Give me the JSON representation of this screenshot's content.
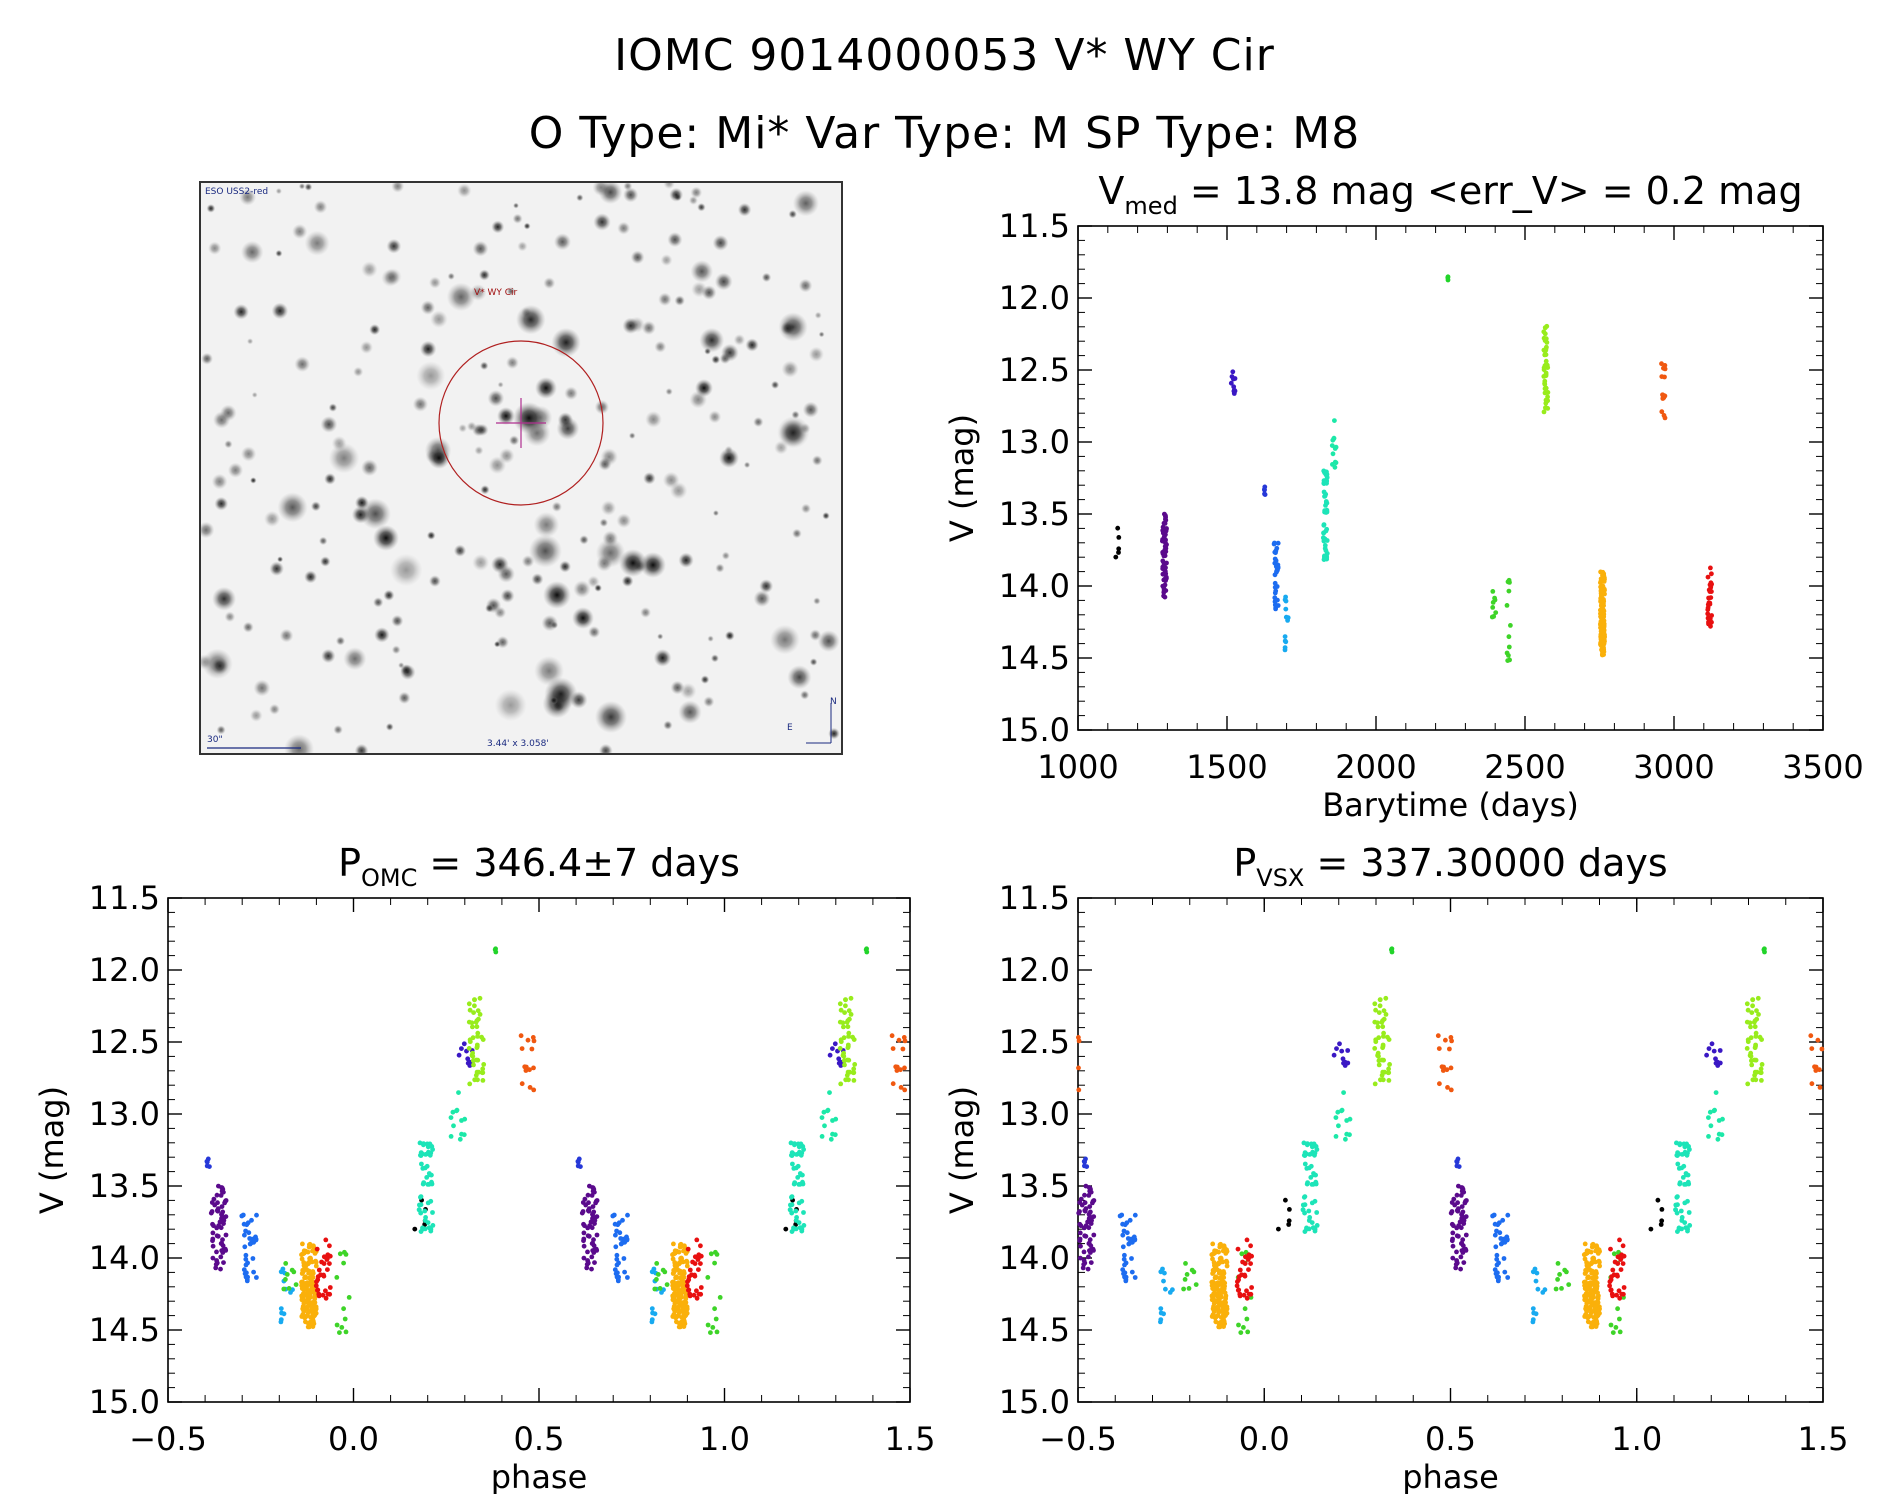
{
  "header": {
    "title": "IOMC 9014000053   V* WY Cir",
    "subtitle": "O Type: Mi*  Var Type: M  SP Type: M8"
  },
  "finder_image": {
    "survey_label": "ESO USS2-red",
    "target_label": "V* WY Cir",
    "scale_label": "30\"",
    "size_label": "3.44' x 3.058'",
    "east_label": "E",
    "north_label": "N"
  },
  "chart_data": [
    {
      "id": "lightcurve",
      "type": "scatter",
      "title_main": "V",
      "title_sub": "med",
      "title_rest": " = 13.8 mag <err_V> = 0.2 mag",
      "xlabel": "Barytime (days)",
      "ylabel": "V (mag)",
      "xlim": [
        1000,
        3500
      ],
      "ylim": [
        15.0,
        11.5
      ],
      "y_inverted": true,
      "xticks": [
        1000,
        1500,
        2000,
        2500,
        3000,
        3500
      ],
      "yticks": [
        11.5,
        12.0,
        12.5,
        13.0,
        13.5,
        14.0,
        14.5,
        15.0
      ],
      "groups": [
        {
          "color": "#000000",
          "x": 1130,
          "ymin": 13.58,
          "ymax": 13.8,
          "n": 5
        },
        {
          "color": "#5a0a8c",
          "x": 1290,
          "ymin": 13.5,
          "ymax": 14.1,
          "n": 60
        },
        {
          "color": "#3a18c4",
          "x": 1520,
          "ymin": 12.5,
          "ymax": 12.68,
          "n": 10
        },
        {
          "color": "#2638d8",
          "x": 1625,
          "ymin": 13.28,
          "ymax": 13.4,
          "n": 5
        },
        {
          "color": "#1d6cf0",
          "x": 1665,
          "ymin": 13.7,
          "ymax": 14.2,
          "n": 35
        },
        {
          "color": "#18aaf0",
          "x": 1700,
          "ymin": 14.05,
          "ymax": 14.5,
          "n": 12
        },
        {
          "color": "#1de4b8",
          "x": 1830,
          "ymin": 13.2,
          "ymax": 13.82,
          "n": 55
        },
        {
          "color": "#1ce8a8",
          "x": 1860,
          "ymin": 12.85,
          "ymax": 13.2,
          "n": 12
        },
        {
          "color": "#22d42a",
          "x": 2235,
          "ymin": 11.85,
          "ymax": 11.88,
          "n": 3
        },
        {
          "color": "#3ed428",
          "x": 2395,
          "ymin": 14.0,
          "ymax": 14.3,
          "n": 8
        },
        {
          "color": "#3ed428",
          "x": 2445,
          "ymin": 13.95,
          "ymax": 14.55,
          "n": 12
        },
        {
          "color": "#98ec1c",
          "x": 2570,
          "ymin": 12.18,
          "ymax": 12.8,
          "n": 45
        },
        {
          "color": "#fab00a",
          "x": 2760,
          "ymin": 13.9,
          "ymax": 14.48,
          "n": 160
        },
        {
          "color": "#f05810",
          "x": 2965,
          "ymin": 12.45,
          "ymax": 12.55,
          "n": 6
        },
        {
          "color": "#f05810",
          "x": 2965,
          "ymin": 12.65,
          "ymax": 12.85,
          "n": 8
        },
        {
          "color": "#e81010",
          "x": 3120,
          "ymin": 13.85,
          "ymax": 14.28,
          "n": 30
        }
      ]
    },
    {
      "id": "phase_omc",
      "type": "scatter",
      "title_main": "P",
      "title_sub": "OMC",
      "title_rest": " = 346.4±7 days",
      "xlabel": "phase",
      "ylabel": "V (mag)",
      "xlim": [
        -0.5,
        1.5
      ],
      "ylim": [
        15.0,
        11.5
      ],
      "y_inverted": true,
      "xticks": [
        -0.5,
        0.0,
        0.5,
        1.0,
        1.5
      ],
      "xtick_labels": [
        "−0.5",
        "0.0",
        "0.5",
        "1.0",
        "1.5"
      ],
      "yticks": [
        11.5,
        12.0,
        12.5,
        13.0,
        13.5,
        14.0,
        14.5,
        15.0
      ],
      "period": 346.4
    },
    {
      "id": "phase_vsx",
      "type": "scatter",
      "title_main": "P",
      "title_sub": "VSX",
      "title_rest": " = 337.30000 days",
      "xlabel": "phase",
      "ylabel": "V (mag)",
      "xlim": [
        -0.5,
        1.5
      ],
      "ylim": [
        15.0,
        11.5
      ],
      "y_inverted": true,
      "xticks": [
        -0.5,
        0.0,
        0.5,
        1.0,
        1.5
      ],
      "xtick_labels": [
        "−0.5",
        "0.0",
        "0.5",
        "1.0",
        "1.5"
      ],
      "yticks": [
        11.5,
        12.0,
        12.5,
        13.0,
        13.5,
        14.0,
        14.5,
        15.0
      ],
      "period": 337.3
    }
  ]
}
